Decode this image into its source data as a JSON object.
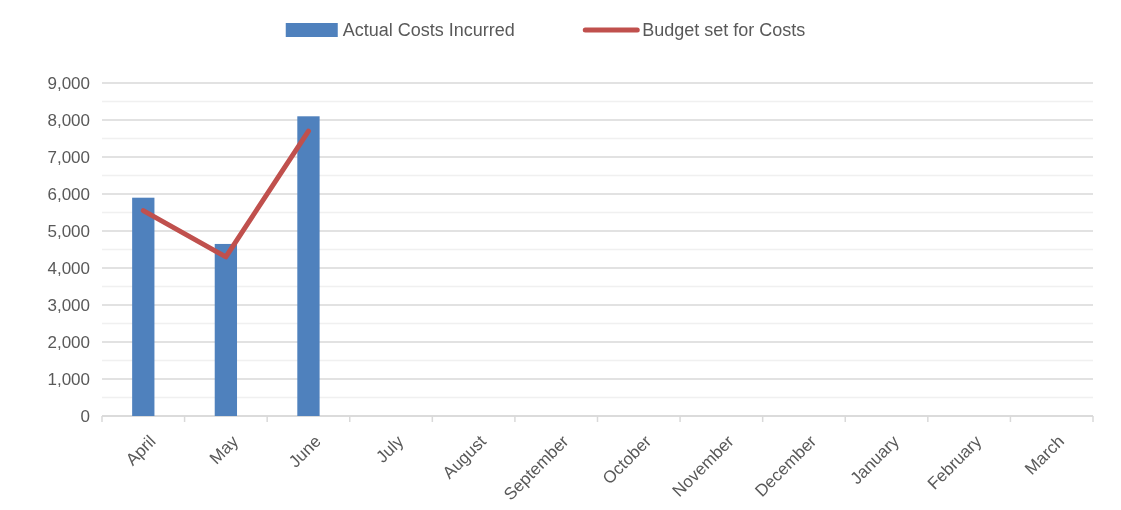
{
  "chart_data": {
    "type": "bar",
    "categories": [
      "April",
      "May",
      "June",
      "July",
      "August",
      "September",
      "October",
      "November",
      "December",
      "January",
      "February",
      "March"
    ],
    "series": [
      {
        "name": "Actual Costs Incurred",
        "color": "#4f81bd",
        "values": [
          5900,
          4650,
          8100,
          null,
          null,
          null,
          null,
          null,
          null,
          null,
          null,
          null
        ]
      },
      {
        "name": "Budget set for Costs",
        "type": "line",
        "color": "#c0504d",
        "values": [
          5550,
          4300,
          7700,
          null,
          null,
          null,
          null,
          null,
          null,
          null,
          null,
          null
        ]
      }
    ],
    "ylim": [
      0,
      9000
    ],
    "yticks": [
      {
        "value": 0,
        "label": "0"
      },
      {
        "value": 500,
        "label": null
      },
      {
        "value": 1000,
        "label": "1,000"
      },
      {
        "value": 1500,
        "label": null
      },
      {
        "value": 2000,
        "label": "2,000"
      },
      {
        "value": 2500,
        "label": null
      },
      {
        "value": 3000,
        "label": "3,000"
      },
      {
        "value": 3500,
        "label": null
      },
      {
        "value": 4000,
        "label": "4,000"
      },
      {
        "value": 4500,
        "label": null
      },
      {
        "value": 5000,
        "label": "5,000"
      },
      {
        "value": 5500,
        "label": null
      },
      {
        "value": 6000,
        "label": "6,000"
      },
      {
        "value": 6500,
        "label": null
      },
      {
        "value": 7000,
        "label": "7,000"
      },
      {
        "value": 7500,
        "label": null
      },
      {
        "value": 8000,
        "label": "8,000"
      },
      {
        "value": 8500,
        "label": null
      },
      {
        "value": 9000,
        "label": "9,000"
      }
    ],
    "grid": "y",
    "legend": "top",
    "line_style": "solid",
    "marker": "none"
  }
}
